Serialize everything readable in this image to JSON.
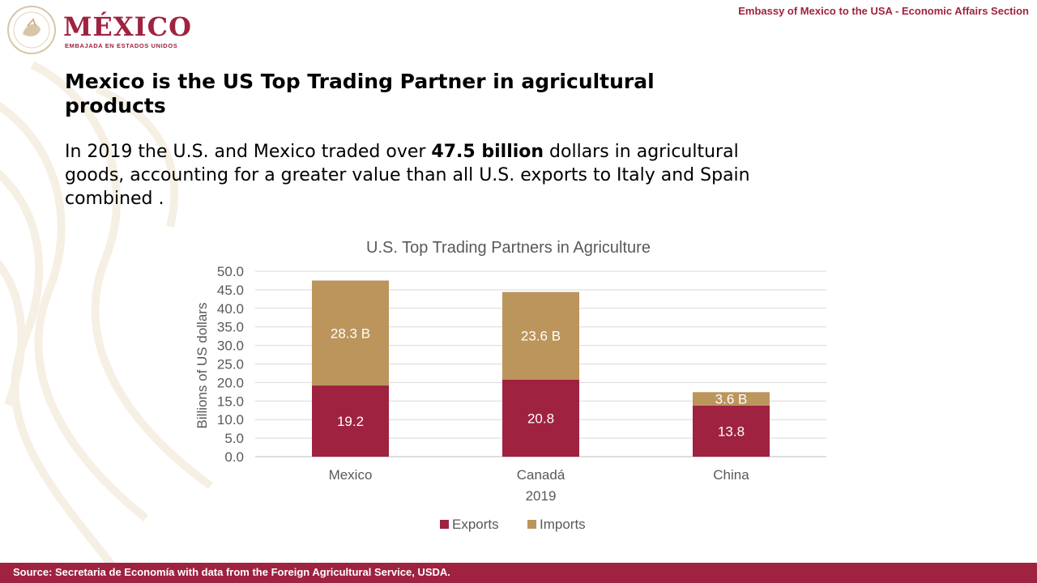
{
  "header": {
    "brand": "MÉXICO",
    "brand_sub": "EMBAJADA EN ESTADOS UNIDOS",
    "section": "Embassy of Mexico to the USA - Economic Affairs Section"
  },
  "slide": {
    "title": "Mexico is the US Top Trading Partner in agricultural products",
    "lead_pre": "In 2019 the U.S. and Mexico traded over ",
    "lead_bold": "47.5 billion",
    "lead_post": " dollars in agricultural goods, accounting for a greater value than all U.S. exports to Italy and Spain combined ."
  },
  "footer": {
    "source": "Source: Secretaria de Economía with data from the Foreign Agricultural Service, USDA."
  },
  "colors": {
    "exports": "#9f2241",
    "imports": "#bc955c",
    "brand": "#9f2241"
  },
  "chart_data": {
    "type": "bar",
    "stacked": true,
    "title": "U.S. Top Trading  Partners  in Agriculture",
    "xlabel": "2019",
    "ylabel": "Billions of US dollars",
    "categories": [
      "Mexico",
      "Canadá",
      "China"
    ],
    "ylim": [
      0,
      50
    ],
    "yticks": [
      "0.0",
      "5.0",
      "10.0",
      "15.0",
      "20.0",
      "25.0",
      "30.0",
      "35.0",
      "40.0",
      "45.0",
      "50.0"
    ],
    "grid": true,
    "legend_position": "bottom",
    "series": [
      {
        "name": "Exports",
        "values": [
          19.2,
          20.8,
          13.8
        ],
        "labels": [
          "19.2",
          "20.8",
          "13.8"
        ]
      },
      {
        "name": "Imports",
        "values": [
          28.3,
          23.6,
          3.6
        ],
        "labels": [
          "28.3 B",
          "23.6 B",
          "3.6 B"
        ]
      }
    ]
  }
}
